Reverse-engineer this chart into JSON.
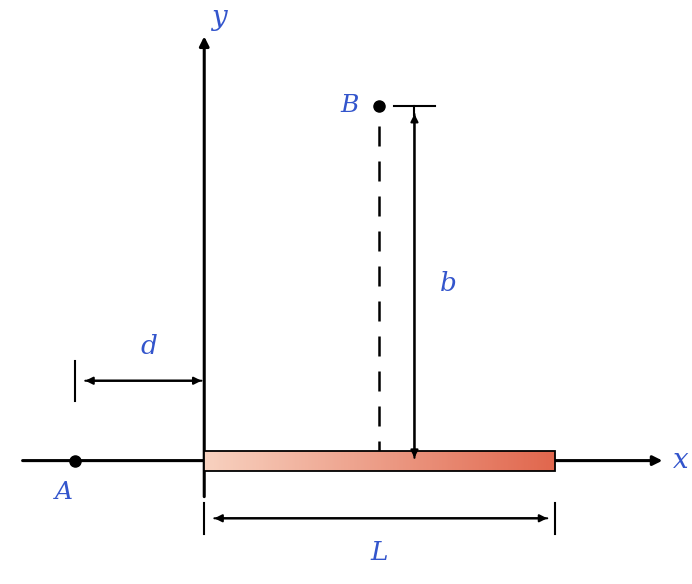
{
  "fig_width": 6.92,
  "fig_height": 5.84,
  "dpi": 100,
  "bg_color": "#ffffff",
  "axis_color": "#000000",
  "rod_left_x": 0.0,
  "rod_right_x": 3.8,
  "rod_y": 0.0,
  "rod_height": 0.18,
  "point_A_x": -1.4,
  "point_A_y": 0.0,
  "point_B_x": 1.9,
  "point_B_y": 3.2,
  "d_label": "d",
  "b_label": "b",
  "L_label": "L",
  "x_label": "x",
  "y_label": "y",
  "A_label": "A",
  "B_label": "B",
  "label_color": "#3355cc",
  "xlim": [
    -2.2,
    5.2
  ],
  "ylim": [
    -1.1,
    4.0
  ],
  "axis_x_start": -2.0,
  "axis_x_end": 5.0,
  "axis_y_start": -0.35,
  "axis_y_end": 3.85
}
